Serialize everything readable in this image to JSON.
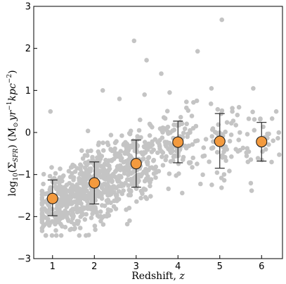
{
  "chart_data": {
    "type": "scatter",
    "xlabel_text": "Redshift, ",
    "xlabel_var": "z",
    "ylabel_prefix": "log",
    "ylabel_sub": "10",
    "ylabel_main": "(Σ",
    "ylabel_main_sub": "SFR",
    "ylabel_rest": ") (M",
    "ylabel_sun": "⊙",
    "ylabel_unit": "yr",
    "ylabel_exp1": "−1",
    "ylabel_kpc": "kpc",
    "ylabel_exp2": "−2",
    "ylabel_close": ")",
    "xlim": [
      0.55,
      6.5
    ],
    "ylim": [
      -3,
      3
    ],
    "x_ticks": [
      1,
      2,
      3,
      4,
      5,
      6
    ],
    "y_ticks": [
      -3,
      -2,
      -1,
      0,
      1,
      2,
      3
    ],
    "binned_points": [
      {
        "x": 1,
        "y": -1.57,
        "err_low": -1.98,
        "err_high": -1.13
      },
      {
        "x": 2,
        "y": -1.2,
        "err_low": -1.7,
        "err_high": -0.7
      },
      {
        "x": 3,
        "y": -0.74,
        "err_low": -1.3,
        "err_high": -0.18
      },
      {
        "x": 4,
        "y": -0.23,
        "err_low": -0.72,
        "err_high": 0.27
      },
      {
        "x": 5,
        "y": -0.21,
        "err_low": -0.85,
        "err_high": 0.45
      },
      {
        "x": 6,
        "y": -0.22,
        "err_low": -0.68,
        "err_high": 0.24
      }
    ],
    "scatter_clusters": [
      {
        "x_mean": 1.2,
        "x_sd": 0.35,
        "y_mean": -1.65,
        "y_sd": 0.35,
        "n": 260
      },
      {
        "x_mean": 2.0,
        "x_sd": 0.35,
        "y_mean": -1.3,
        "y_sd": 0.42,
        "n": 330
      },
      {
        "x_mean": 2.9,
        "x_sd": 0.3,
        "y_mean": -0.8,
        "y_sd": 0.45,
        "n": 240
      },
      {
        "x_mean": 3.95,
        "x_sd": 0.3,
        "y_mean": -0.3,
        "y_sd": 0.45,
        "n": 110
      },
      {
        "x_mean": 5.0,
        "x_sd": 0.3,
        "y_mean": -0.25,
        "y_sd": 0.45,
        "n": 60
      },
      {
        "x_mean": 5.9,
        "x_sd": 0.3,
        "y_mean": -0.25,
        "y_sd": 0.35,
        "n": 35
      }
    ],
    "scatter_outliers": [
      {
        "x": 0.95,
        "y": 0.5
      },
      {
        "x": 2.95,
        "y": 2.18
      },
      {
        "x": 3.25,
        "y": 1.72
      },
      {
        "x": 3.6,
        "y": 1.4
      },
      {
        "x": 4.47,
        "y": 1.93
      },
      {
        "x": 5.05,
        "y": 2.68
      },
      {
        "x": 4.95,
        "y": 0.55
      },
      {
        "x": 5.8,
        "y": 1.05
      },
      {
        "x": 3.2,
        "y": 0.9
      },
      {
        "x": 2.6,
        "y": 0.8
      },
      {
        "x": 2.2,
        "y": 1.0
      },
      {
        "x": 4.8,
        "y": 1.05
      },
      {
        "x": 3.8,
        "y": 0.95
      },
      {
        "x": 6.35,
        "y": 0.5
      },
      {
        "x": 5.3,
        "y": 0.5
      }
    ],
    "colors": {
      "scatter": "#c4c4c4",
      "marker_fill": "#f39a3e",
      "marker_edge": "#1f1f1f",
      "errorbar": "#2b2b2b",
      "axis": "#000000"
    }
  }
}
